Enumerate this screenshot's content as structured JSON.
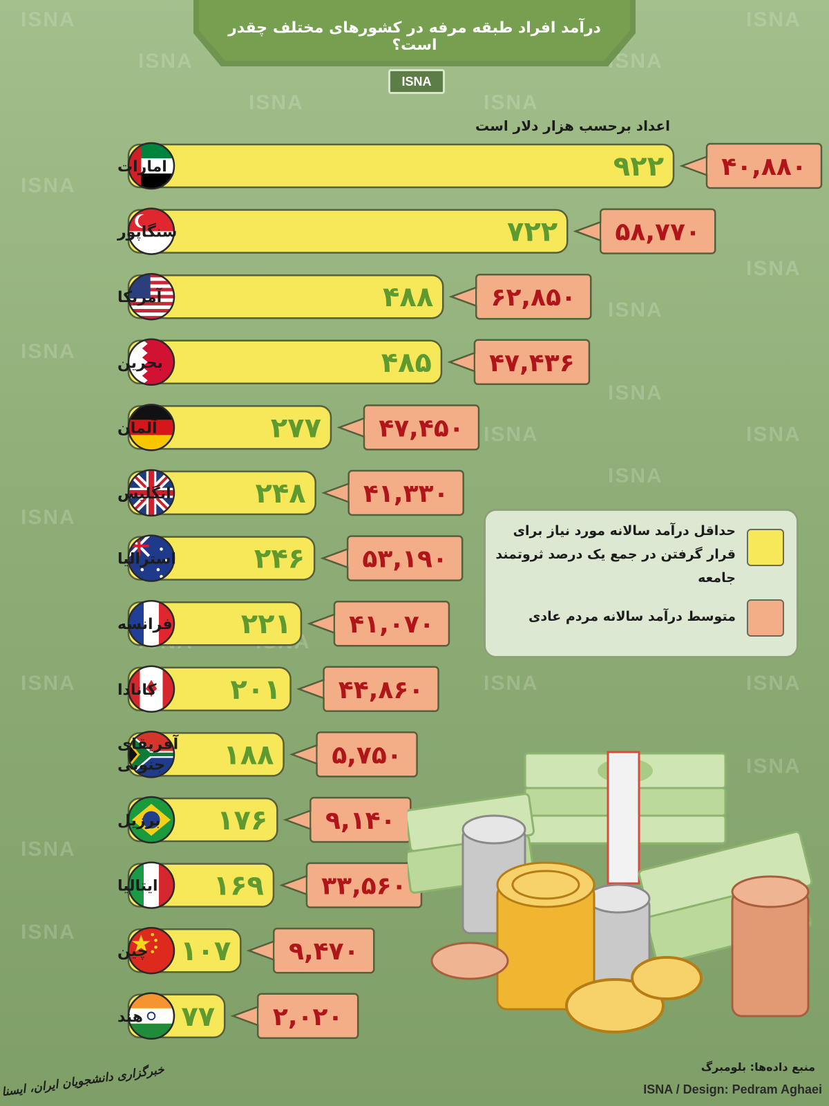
{
  "header": {
    "title": "درآمد افراد طبقه مرفه در کشورهای مختلف چقدر است؟",
    "badge": "ISNA"
  },
  "watermark_text": "ISNA",
  "colors": {
    "bar": "#f7e85a",
    "avg": "#f4ae87",
    "bar_value": "#5e9a2f",
    "avg_value": "#b0151a"
  },
  "chart_data": {
    "type": "bar",
    "title": "درآمد افراد طبقه مرفه در کشورهای مختلف چقدر است؟",
    "subtitle": "اعداد برحسب هزار دلار است",
    "categories": [
      "امارات",
      "سنگاپور",
      "آمریکا",
      "بحرین",
      "آلمان",
      "انگلیس",
      "استرالیا",
      "فرانسه",
      "کانادا",
      "آفریقای جنوبی",
      "برزیل",
      "ایتالیا",
      "چین",
      "هند"
    ],
    "flags": [
      "uae",
      "singapore",
      "usa",
      "bahrain",
      "germany",
      "uk",
      "australia",
      "france",
      "canada",
      "south-africa",
      "brazil",
      "italy",
      "china",
      "india"
    ],
    "series": [
      {
        "name": "حداقل درآمد سالانه مورد نیاز برای قرار گرفتن در جمع یک درصد ثروتمند جامعه",
        "values": [
          922,
          722,
          488,
          485,
          277,
          248,
          246,
          221,
          201,
          188,
          176,
          169,
          107,
          77
        ],
        "labels": [
          "۹۲۲",
          "۷۲۲",
          "۴۸۸",
          "۴۸۵",
          "۲۷۷",
          "۲۴۸",
          "۲۴۶",
          "۲۲۱",
          "۲۰۱",
          "۱۸۸",
          "۱۷۶",
          "۱۶۹",
          "۱۰۷",
          "۷۷"
        ]
      },
      {
        "name": "متوسط درآمد سالانه مردم عادی",
        "values": [
          40880,
          58770,
          62850,
          47436,
          47450,
          41330,
          53190,
          41070,
          44860,
          5750,
          9140,
          33560,
          9470,
          2020
        ],
        "labels": [
          "۴۰,۸۸۰",
          "۵۸,۷۷۰",
          "۶۲,۸۵۰",
          "۴۷,۴۳۶",
          "۴۷,۴۵۰",
          "۴۱,۳۳۰",
          "۵۳,۱۹۰",
          "۴۱,۰۷۰",
          "۴۴,۸۶۰",
          "۵,۷۵۰",
          "۹,۱۴۰",
          "۳۳,۵۶۰",
          "۹,۴۷۰",
          "۲,۰۲۰"
        ]
      }
    ],
    "legend_position": "right-middle"
  },
  "legend": {
    "items": [
      {
        "label": "حداقل درآمد سالانه مورد نیاز برای قرار گرفتن در جمع یک درصد ثروتمند جامعه",
        "color": "#f7e85a"
      },
      {
        "label": "متوسط درآمد سالانه مردم عادی",
        "color": "#f4ae87"
      }
    ]
  },
  "footer": {
    "source": "منبع داده‌ها: بلومبرگ",
    "design": "ISNA / Design: Pedram Aghaei",
    "agency": "خبرگزاری دانشجویان ایران، ایسنا"
  }
}
